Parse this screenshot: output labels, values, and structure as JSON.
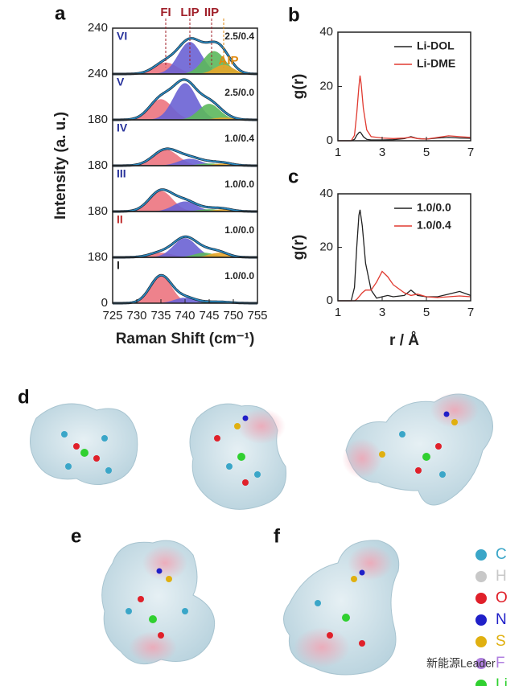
{
  "chart_data": [
    {
      "type": "raman_stack",
      "label": "a",
      "xlabel": "Raman Shift (cm⁻¹)",
      "ylabel": "Intensity (a. u.)",
      "xlim": [
        725,
        755
      ],
      "xticks": [
        725,
        730,
        735,
        740,
        745,
        750,
        755
      ],
      "stack_ticks": [
        240,
        240,
        180,
        180,
        180,
        180,
        0
      ],
      "panel_ylim": [
        0,
        1
      ],
      "components": [
        {
          "name": "FI",
          "color": "#ec7480"
        },
        {
          "name": "LIP",
          "color": "#6a62d4"
        },
        {
          "name": "IIP",
          "color": "#5cb85c"
        },
        {
          "name": "AIP",
          "color": "#e8a52a"
        }
      ],
      "peak_markers": [
        736,
        741,
        745.5,
        748
      ],
      "marker_colors": [
        "#a0202a",
        "#a0202a",
        "#a0202a",
        "#e08a10"
      ],
      "envelope_color": "#2a8cc4",
      "panels": [
        {
          "name": "VI",
          "name_color": "#2a349c",
          "ratio": "2.5/0.4",
          "centers": [
            736,
            741,
            746,
            748
          ],
          "heights": [
            0.25,
            0.7,
            0.5,
            0.2
          ],
          "widths": [
            2.4,
            2.4,
            2.3,
            2
          ]
        },
        {
          "name": "V",
          "name_color": "#2a349c",
          "ratio": "2.5/0.0",
          "centers": [
            735,
            740,
            745,
            748
          ],
          "heights": [
            0.45,
            0.8,
            0.35,
            0.05
          ],
          "widths": [
            2.4,
            2.4,
            2.2,
            2
          ]
        },
        {
          "name": "IV",
          "name_color": "#2a349c",
          "ratio": "1.0/0.4",
          "centers": [
            736,
            741,
            745,
            748
          ],
          "heights": [
            0.35,
            0.15,
            0.05,
            0.05
          ],
          "widths": [
            2.6,
            2.4,
            2.2,
            2
          ]
        },
        {
          "name": "III",
          "name_color": "#2a349c",
          "ratio": "1.0/0.0",
          "centers": [
            735,
            740,
            745,
            748
          ],
          "heights": [
            0.45,
            0.22,
            0.05,
            0.05
          ],
          "widths": [
            2.4,
            2.4,
            2.2,
            2
          ]
        },
        {
          "name": "II",
          "name_color": "#c03030",
          "ratio": "1.0/0.0",
          "centers": [
            735,
            740,
            744,
            747
          ],
          "heights": [
            0.1,
            0.42,
            0.1,
            0.1
          ],
          "widths": [
            2.4,
            2.4,
            2.2,
            2
          ]
        },
        {
          "name": "I",
          "name_color": "#222222",
          "ratio": "1.0/0.0",
          "centers": [
            735,
            740,
            745,
            748
          ],
          "heights": [
            0.6,
            0.12,
            0.02,
            0.02
          ],
          "widths": [
            2.2,
            2.2,
            2.2,
            2
          ]
        }
      ]
    },
    {
      "type": "line",
      "label": "b",
      "ylabel": "g(r)",
      "xlim": [
        1,
        7
      ],
      "xticks": [
        1,
        3,
        5,
        7
      ],
      "ylim": [
        0,
        40
      ],
      "yticks": [
        0,
        20,
        40
      ],
      "legend": "upper right",
      "x": [
        1,
        1.6,
        1.75,
        1.85,
        1.95,
        2.0,
        2.05,
        2.15,
        2.3,
        2.5,
        3,
        3.5,
        4,
        4.3,
        4.6,
        5,
        5.5,
        6,
        6.5,
        7
      ],
      "series": [
        {
          "name": "Li-DOL",
          "color": "#222222",
          "values": [
            0,
            0,
            0.5,
            2,
            3,
            3.2,
            2.8,
            1.5,
            0.5,
            0.3,
            0.3,
            0.4,
            0.8,
            1.5,
            0.8,
            0.6,
            1,
            1.2,
            1,
            0.9
          ]
        },
        {
          "name": "Li-DME",
          "color": "#e03a30",
          "values": [
            0,
            0,
            2,
            10,
            20,
            24,
            21,
            12,
            4,
            1.5,
            1,
            0.8,
            1,
            1.3,
            0.8,
            0.6,
            1.2,
            1.8,
            1.5,
            1.2
          ]
        }
      ]
    },
    {
      "type": "line",
      "label": "c",
      "ylabel": "g(r)",
      "xlabel": "r / Å",
      "xlim": [
        1,
        7
      ],
      "xticks": [
        1,
        3,
        5,
        7
      ],
      "ylim": [
        0,
        40
      ],
      "yticks": [
        0,
        20,
        40
      ],
      "legend": "upper right",
      "x": [
        1,
        1.6,
        1.75,
        1.85,
        1.95,
        2.0,
        2.1,
        2.25,
        2.5,
        2.75,
        3,
        3.25,
        3.5,
        4,
        4.3,
        4.6,
        5,
        5.5,
        6,
        6.5,
        7
      ],
      "series": [
        {
          "name": "1.0/0.0",
          "color": "#222222",
          "values": [
            0,
            0,
            5,
            20,
            32,
            34,
            28,
            14,
            4,
            1,
            1.5,
            2,
            1.5,
            2,
            4,
            2,
            1.5,
            1.5,
            2.5,
            3.5,
            2
          ]
        },
        {
          "name": "1.0/0.4",
          "color": "#e03a30",
          "values": [
            0,
            0,
            0,
            0.5,
            1.5,
            2,
            3,
            4,
            4,
            7,
            11,
            9,
            6,
            3,
            2,
            2.5,
            1.5,
            1.2,
            1.5,
            1.8,
            1.5
          ]
        }
      ]
    }
  ],
  "panel_labels": [
    "d",
    "e",
    "f"
  ],
  "atom_legend": [
    {
      "symbol": "C",
      "color": "#3aa6c8"
    },
    {
      "symbol": "H",
      "color": "#c8c8c8"
    },
    {
      "symbol": "O",
      "color": "#e0202a"
    },
    {
      "symbol": "N",
      "color": "#2020c8"
    },
    {
      "symbol": "S",
      "color": "#e0b010"
    },
    {
      "symbol": "F",
      "color": "#b080e0"
    },
    {
      "symbol": "Li",
      "color": "#30d030"
    }
  ],
  "watermark": "新能源Leader"
}
